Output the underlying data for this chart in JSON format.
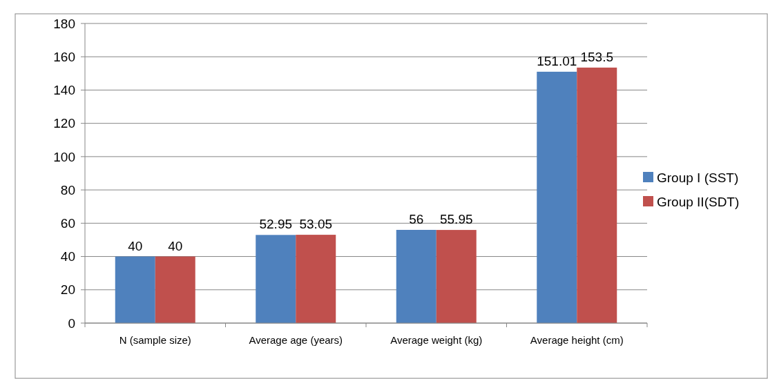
{
  "chart_data": {
    "type": "bar",
    "categories": [
      "N (sample size)",
      "Average age (years)",
      "Average weight (kg)",
      "Average height (cm)"
    ],
    "series": [
      {
        "name": "Group I (SST)",
        "color": "#4f81bd",
        "values": [
          40,
          52.95,
          56,
          151.01
        ]
      },
      {
        "name": "Group II(SDT)",
        "color": "#c0504d",
        "values": [
          40,
          53.05,
          55.95,
          153.5
        ]
      }
    ],
    "ylim": [
      0,
      180
    ],
    "yticks": [
      0,
      20,
      40,
      60,
      80,
      100,
      120,
      140,
      160,
      180
    ],
    "grid": "y",
    "legend": "right",
    "data_labels": true
  }
}
